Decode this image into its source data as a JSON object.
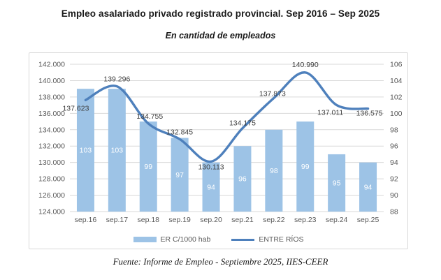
{
  "header": {
    "title": "Empleo asalariado privado registrado provincial. Sep 2016 – Sep 2025",
    "subtitle": "En cantidad de empleados"
  },
  "footer": {
    "source": "Fuente: Informe de Empleo - Septiembre 2025, IIES-CEER"
  },
  "colors": {
    "bar": "#9dc3e6",
    "line": "#4e80bc",
    "grid": "#d9d9d9",
    "axis_text": "#595959",
    "line_label": "#3f3f3f",
    "bar_label": "#ffffff",
    "box_border": "#d9d9d9"
  },
  "chart_data": {
    "type": "combo",
    "title": "Empleo asalariado privado registrado provincial. Sep 2016 – Sep 2025",
    "subtitle": "En cantidad de empleados",
    "categories": [
      "sep.16",
      "sep.17",
      "sep.18",
      "sep.19",
      "sep.20",
      "sep.21",
      "sep.22",
      "sep.23",
      "sep.24",
      "sep.25"
    ],
    "series": [
      {
        "name": "ER C/1000 hab",
        "type": "bar",
        "axis": "right",
        "values": [
          103,
          103,
          99,
          97,
          94,
          96,
          98,
          99,
          95,
          94
        ]
      },
      {
        "name": "ENTRE RÍOS",
        "type": "line",
        "axis": "left",
        "smooth": true,
        "values": [
          137623,
          139296,
          134755,
          132845,
          130113,
          134175,
          137873,
          140990,
          137011,
          136575
        ],
        "labels": [
          "137.623",
          "139.296",
          "134.755",
          "132.845",
          "130.113",
          "134.175",
          "137.873",
          "140.990",
          "137.011",
          "136.575"
        ],
        "label_offsets": [
          [
            -14,
            15
          ],
          [
            0,
            -7
          ],
          [
            2,
            -7
          ],
          [
            0,
            -7
          ],
          [
            0,
            11
          ],
          [
            0,
            -4
          ],
          [
            -2,
            -3
          ],
          [
            0,
            -8
          ],
          [
            -9,
            14
          ],
          [
            2,
            10
          ]
        ]
      }
    ],
    "left_axis": {
      "min": 124000,
      "max": 142000,
      "step": 2000,
      "tick_labels": [
        "142.000",
        "140.000",
        "138.000",
        "136.000",
        "134.000",
        "132.000",
        "130.000",
        "128.000",
        "126.000",
        "124.000"
      ]
    },
    "right_axis": {
      "min": 88,
      "max": 106,
      "step": 2,
      "tick_labels": [
        "106",
        "104",
        "102",
        "100",
        "98",
        "96",
        "94",
        "92",
        "90",
        "88"
      ]
    },
    "grid": true,
    "legend_position": "bottom"
  }
}
